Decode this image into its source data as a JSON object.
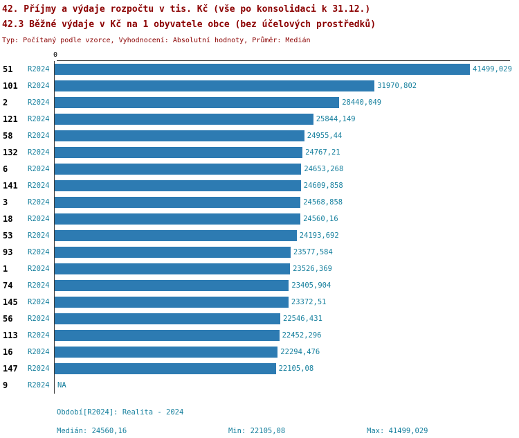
{
  "header": {
    "title_line1": "42. Příjmy a výdaje rozpočtu v tis. Kč (vše po konsolidaci k 31.12.)",
    "title_line2": "42.3 Běžné výdaje v Kč na 1 obyvatele obce (bez účelových prostředků)",
    "subtitle": "Typ: Počítaný podle vzorce, Vyhodnocení: Absolutní hodnoty, Průměr: Medián"
  },
  "colors": {
    "title": "#8b0000",
    "bar": "#2d7bb2",
    "teal_text": "#17809e",
    "axis": "#3a3a3a",
    "rank_text": "#000000"
  },
  "chart_data": {
    "type": "bar",
    "orientation": "horizontal",
    "title": "42.3 Běžné výdaje v Kč na 1 obyvatele obce (bez účelových prostředků)",
    "x_axis": {
      "origin_label": "0"
    },
    "legend_position": "none",
    "grid": false,
    "max_value": 41499.029,
    "rows": [
      {
        "rank": "51",
        "period": "R2024",
        "value": 41499.029,
        "label": "41499,029"
      },
      {
        "rank": "101",
        "period": "R2024",
        "value": 31970.802,
        "label": "31970,802"
      },
      {
        "rank": "2",
        "period": "R2024",
        "value": 28440.049,
        "label": "28440,049"
      },
      {
        "rank": "121",
        "period": "R2024",
        "value": 25844.149,
        "label": "25844,149"
      },
      {
        "rank": "58",
        "period": "R2024",
        "value": 24955.44,
        "label": "24955,44"
      },
      {
        "rank": "132",
        "period": "R2024",
        "value": 24767.21,
        "label": "24767,21"
      },
      {
        "rank": "6",
        "period": "R2024",
        "value": 24653.268,
        "label": "24653,268"
      },
      {
        "rank": "141",
        "period": "R2024",
        "value": 24609.858,
        "label": "24609,858"
      },
      {
        "rank": "3",
        "period": "R2024",
        "value": 24568.858,
        "label": "24568,858"
      },
      {
        "rank": "18",
        "period": "R2024",
        "value": 24560.16,
        "label": "24560,16"
      },
      {
        "rank": "53",
        "period": "R2024",
        "value": 24193.692,
        "label": "24193,692"
      },
      {
        "rank": "93",
        "period": "R2024",
        "value": 23577.584,
        "label": "23577,584"
      },
      {
        "rank": "1",
        "period": "R2024",
        "value": 23526.369,
        "label": "23526,369"
      },
      {
        "rank": "74",
        "period": "R2024",
        "value": 23405.904,
        "label": "23405,904"
      },
      {
        "rank": "145",
        "period": "R2024",
        "value": 23372.51,
        "label": "23372,51"
      },
      {
        "rank": "56",
        "period": "R2024",
        "value": 22546.431,
        "label": "22546,431"
      },
      {
        "rank": "113",
        "period": "R2024",
        "value": 22452.296,
        "label": "22452,296"
      },
      {
        "rank": "16",
        "period": "R2024",
        "value": 22294.476,
        "label": "22294,476"
      },
      {
        "rank": "147",
        "period": "R2024",
        "value": 22105.08,
        "label": "22105,08"
      },
      {
        "rank": "9",
        "period": "R2024",
        "value": null,
        "label": "NA"
      }
    ]
  },
  "footer": {
    "period_info": "Období[R2024]: Realita - 2024",
    "median_label": "Medián: 24560,16",
    "min_label": "Min: 22105,08",
    "max_label": "Max: 41499,029"
  }
}
